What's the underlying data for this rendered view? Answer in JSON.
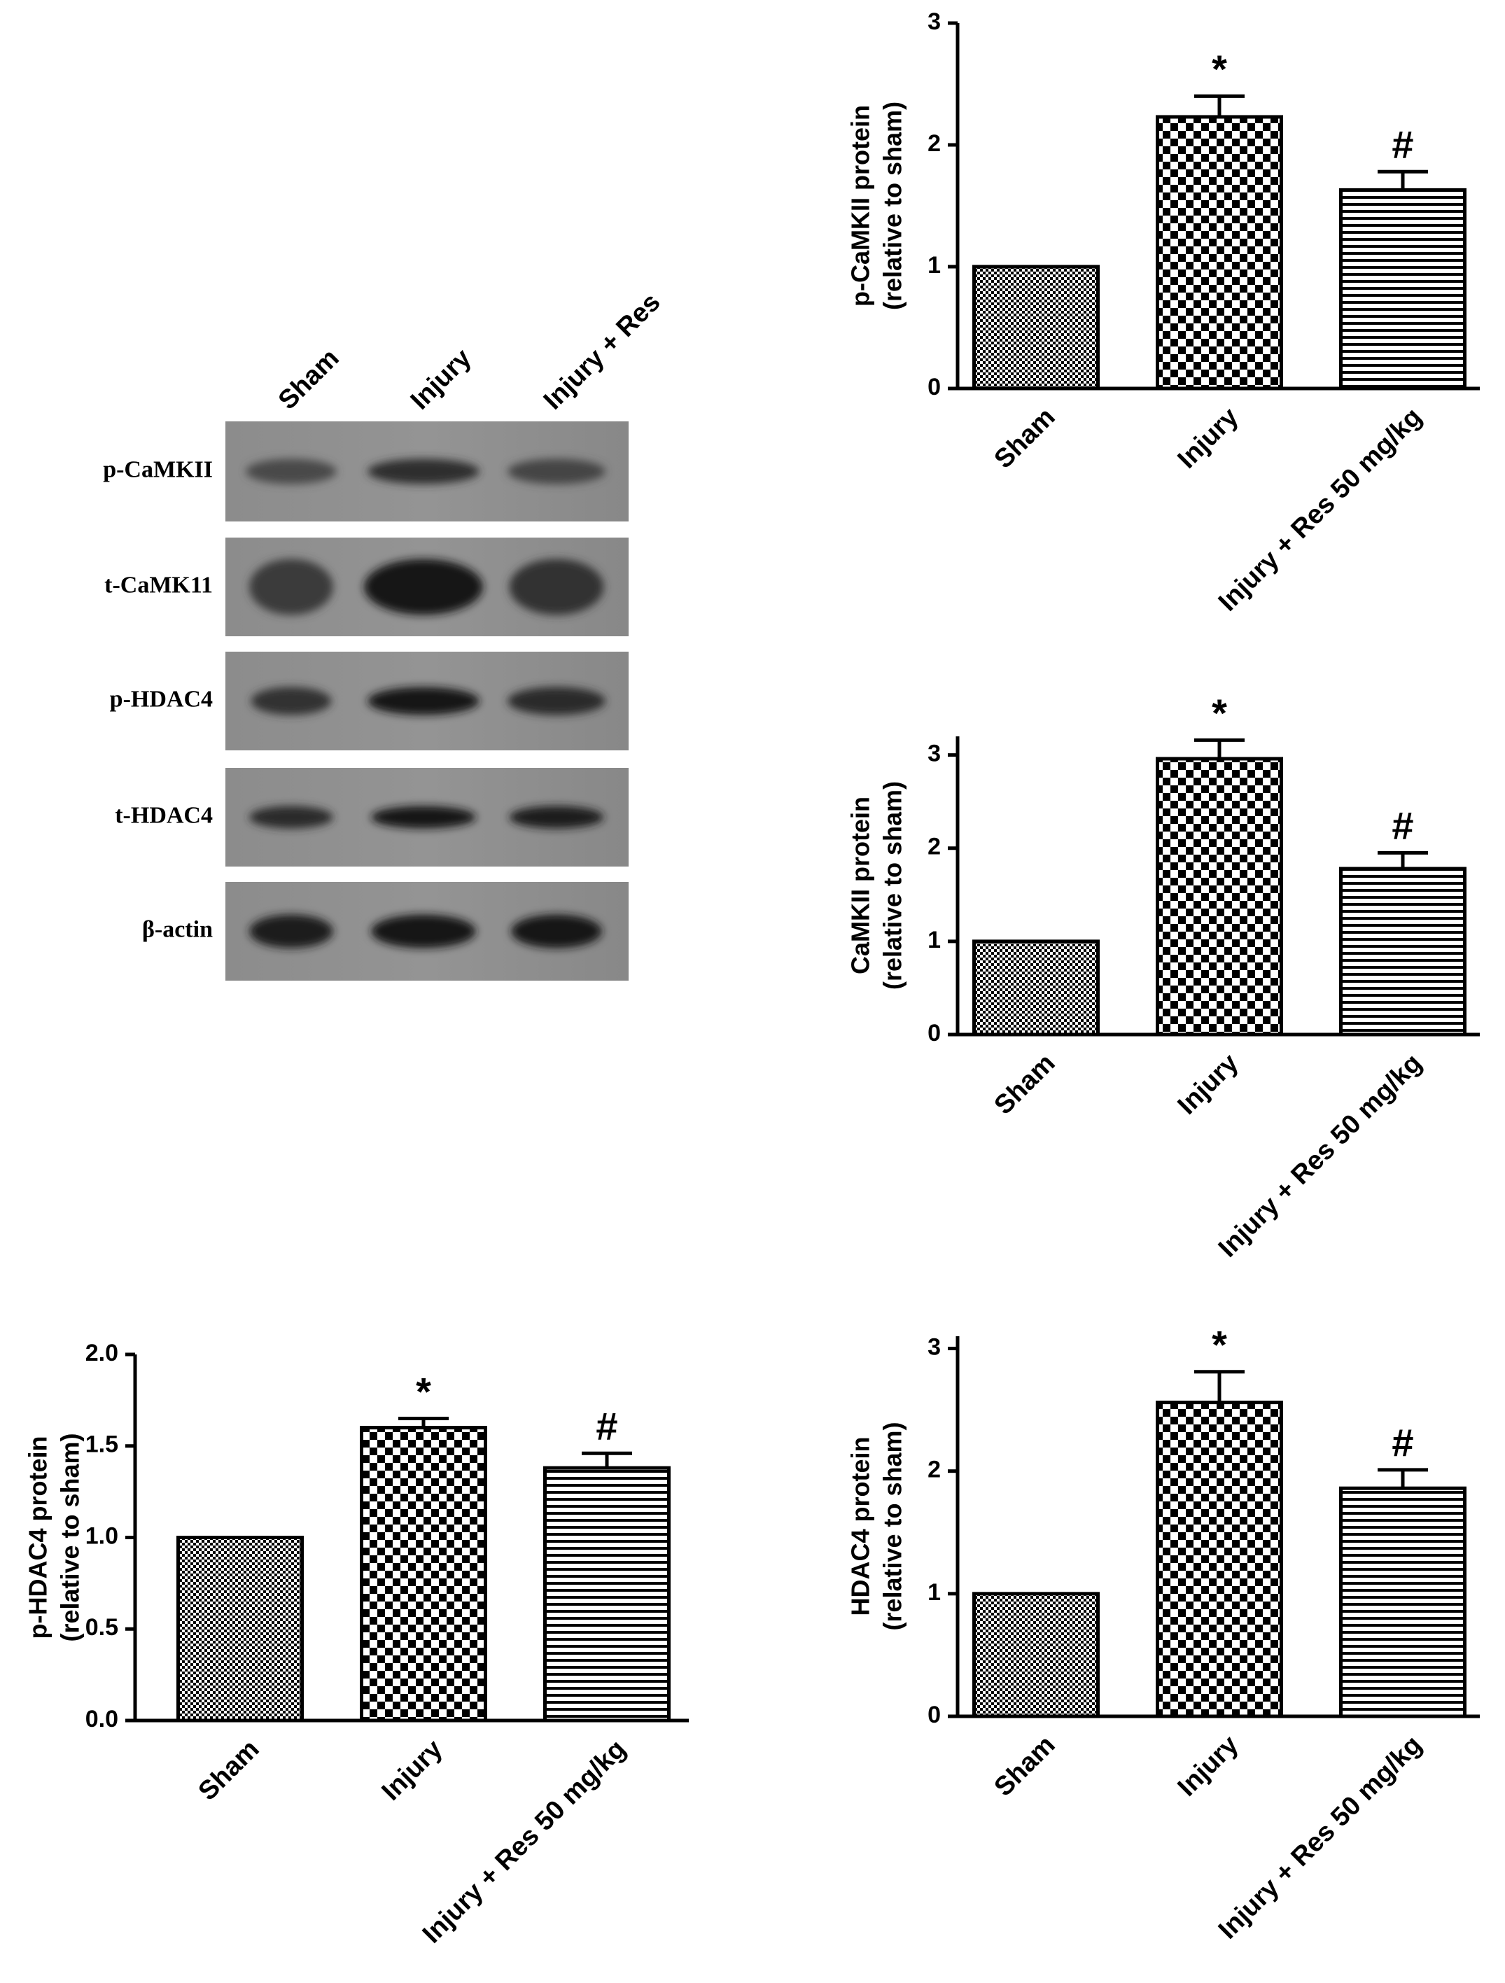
{
  "blot": {
    "lanes": [
      "Sham",
      "Injury",
      "Injury + Res"
    ],
    "rows": [
      "p-CaMKII",
      "t-CaMK11",
      "p-HDAC4",
      "t-HDAC4",
      "β-actin"
    ]
  },
  "chart_data": [
    {
      "type": "bar",
      "y_label": [
        "p-CaMKII protein",
        "(relative to sham)"
      ],
      "categories": [
        "Sham",
        "Injury",
        "Injury + Res 50 mg/kg"
      ],
      "values": [
        1,
        2.23,
        1.63
      ],
      "errors": [
        null,
        0.17,
        0.15
      ],
      "annotations": [
        null,
        "*",
        "#"
      ],
      "patterns": [
        "fine-check",
        "check",
        "hlines"
      ],
      "ylim": [
        0,
        3
      ],
      "yticks": [
        0,
        1,
        2,
        3
      ]
    },
    {
      "type": "bar",
      "y_label": [
        "CaMKII protein",
        "(relative to sham)"
      ],
      "categories": [
        "Sham",
        "Injury",
        "Injury + Res 50 mg/kg"
      ],
      "values": [
        1,
        2.96,
        1.78
      ],
      "errors": [
        null,
        0.2,
        0.17
      ],
      "annotations": [
        null,
        "*",
        "#"
      ],
      "patterns": [
        "fine-check",
        "check",
        "hlines"
      ],
      "ylim": [
        0,
        3.2
      ],
      "yticks": [
        0,
        1,
        2,
        3
      ]
    },
    {
      "type": "bar",
      "y_label": [
        "p-HDAC4 protein",
        "(relative to sham)"
      ],
      "categories": [
        "Sham",
        "Injury",
        "Injury + Res 50 mg/kg"
      ],
      "values": [
        1,
        1.6,
        1.38
      ],
      "errors": [
        null,
        0.05,
        0.08
      ],
      "annotations": [
        null,
        "*",
        "#"
      ],
      "patterns": [
        "fine-check",
        "check",
        "hlines"
      ],
      "ylim": [
        0,
        2
      ],
      "yticks": [
        {
          "value": 0,
          "label": "0.0"
        },
        0.5,
        {
          "value": 1,
          "label": "1.0"
        },
        1.5,
        {
          "value": 2,
          "label": "2.0"
        }
      ]
    },
    {
      "type": "bar",
      "y_label": [
        "HDAC4 protein",
        "(relative to sham)"
      ],
      "categories": [
        "Sham",
        "Injury",
        "Injury + Res 50 mg/kg"
      ],
      "values": [
        1,
        2.56,
        1.86
      ],
      "errors": [
        null,
        0.25,
        0.15
      ],
      "annotations": [
        null,
        "*",
        "#"
      ],
      "patterns": [
        "fine-check",
        "check",
        "hlines"
      ],
      "ylim": [
        0,
        3.1
      ],
      "yticks": [
        0,
        1,
        2,
        3
      ]
    }
  ]
}
